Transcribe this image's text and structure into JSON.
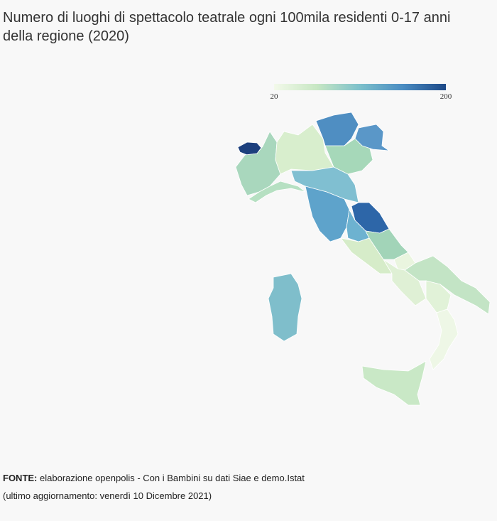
{
  "title": "Numero di luoghi di spettacolo teatrale ogni 100mila residenti 0-17 anni della regione (2020)",
  "legend": {
    "lim": [
      20,
      200
    ],
    "ticks": [
      20,
      200
    ],
    "colors": [
      "#f3f9ea",
      "#c7e7c3",
      "#7cc0cb",
      "#4a8cc2",
      "#1c4887"
    ]
  },
  "source": {
    "label": "FONTE:",
    "text": "elaborazione openpolis - Con i Bambini su dati Siae e demo.Istat"
  },
  "updated": "(ultimo aggiornamento: venerdì 10 Dicembre 2021)"
}
